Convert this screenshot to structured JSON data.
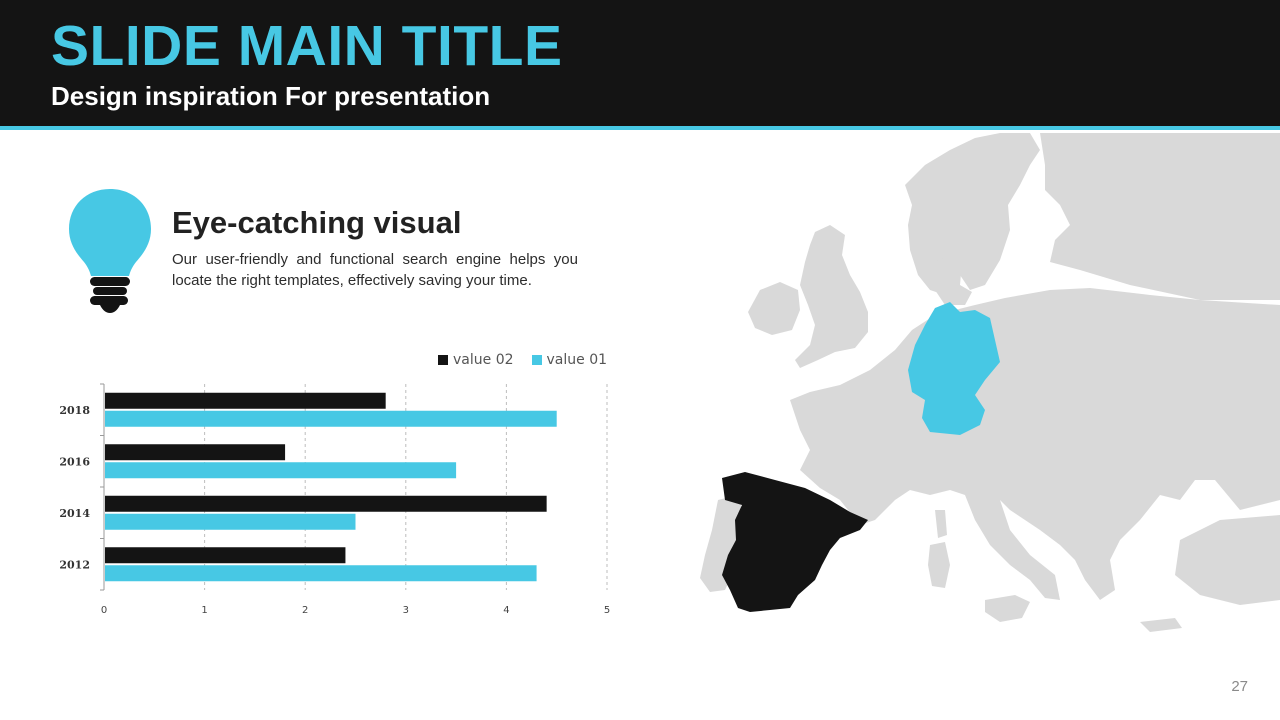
{
  "slide": {
    "title": "SLIDE MAIN TITLE",
    "subtitle": "Design inspiration For presentation",
    "page_number": "27"
  },
  "card": {
    "icon": "lightbulb-icon",
    "heading": "Eye-catching visual",
    "body": "Our user-friendly and functional search engine helps you locate the right templates, effectively saving your time."
  },
  "map": {
    "region": "Europe",
    "highlighted": [
      {
        "country": "Germany",
        "color": "#47c8e4"
      },
      {
        "country": "Spain",
        "color": "#141414"
      }
    ],
    "base_color": "#d9d9d9"
  },
  "colors": {
    "accent": "#47c8e4",
    "dark": "#141414",
    "header_bg": "#141414"
  },
  "chart_data": {
    "type": "bar",
    "orientation": "horizontal",
    "categories": [
      "2018",
      "2016",
      "2014",
      "2012"
    ],
    "series": [
      {
        "name": "value 02",
        "color": "#141414",
        "values": [
          2.8,
          1.8,
          4.4,
          2.4
        ]
      },
      {
        "name": "value 01",
        "color": "#47c8e4",
        "values": [
          4.5,
          3.5,
          2.5,
          4.3
        ]
      }
    ],
    "xlim": [
      0,
      5
    ],
    "xticks": [
      "0",
      "1",
      "2",
      "3",
      "4",
      "5"
    ],
    "grid": "vertical-dashed",
    "legend_position": "top-right"
  }
}
